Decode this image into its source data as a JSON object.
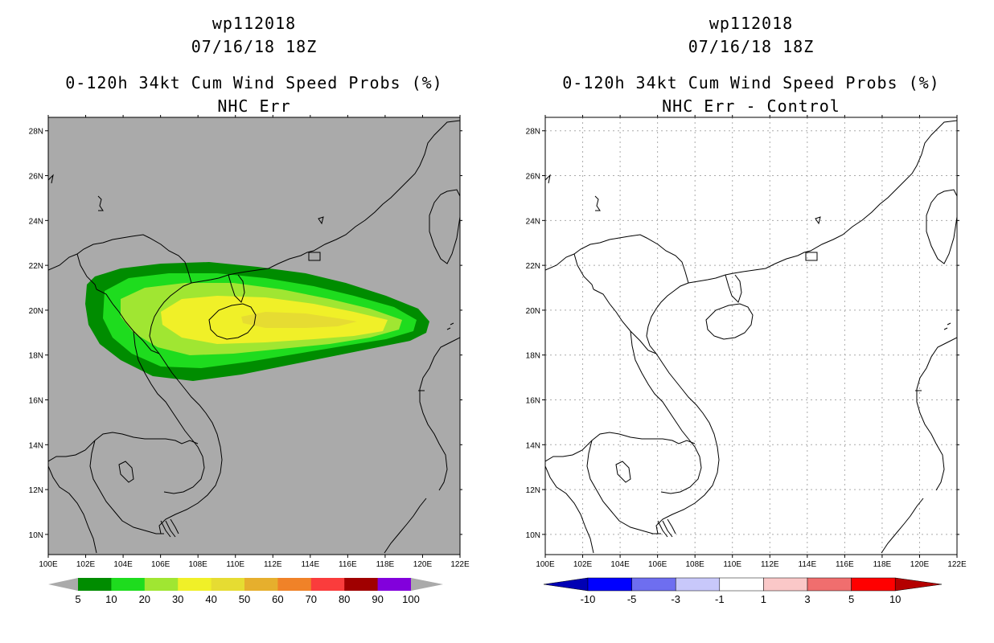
{
  "left": {
    "title1": "wp112018",
    "title2": "07/16/18 18Z",
    "title3": "0-120h 34kt Cum Wind Speed Probs (%)",
    "title4": "NHC Err",
    "legend_labels": [
      "5",
      "10",
      "20",
      "30",
      "40",
      "50",
      "60",
      "70",
      "80",
      "90",
      "100"
    ],
    "legend_colors": [
      "#008c00",
      "#1edc1e",
      "#a0e632",
      "#f0f028",
      "#e6dc32",
      "#e6af2d",
      "#f08228",
      "#fa3c3c",
      "#a00000",
      "#8200dc"
    ],
    "background_color": "#aaaaaa"
  },
  "right": {
    "title1": "wp112018",
    "title2": "07/16/18 18Z",
    "title3": "0-120h 34kt Cum Wind Speed Probs (%)",
    "title4": "NHC Err - Control",
    "legend_labels": [
      "-10",
      "-5",
      "-3",
      "-1",
      "1",
      "3",
      "5",
      "10"
    ],
    "legend_colors": [
      "#0000b4",
      "#0000ff",
      "#6e6ef0",
      "#c8c8fa",
      "#ffffff",
      "#fac8c8",
      "#f06e6e",
      "#ff0000",
      "#b40000"
    ]
  },
  "axes": {
    "lon_labels": [
      "100E",
      "102E",
      "104E",
      "106E",
      "108E",
      "110E",
      "112E",
      "114E",
      "116E",
      "118E",
      "120E",
      "122E"
    ],
    "lat_labels": [
      "10N",
      "12N",
      "14N",
      "16N",
      "18N",
      "20N",
      "22N",
      "24N",
      "26N",
      "28N"
    ],
    "lon_range": [
      100,
      122
    ],
    "lat_range": [
      9.1,
      28.6
    ]
  }
}
